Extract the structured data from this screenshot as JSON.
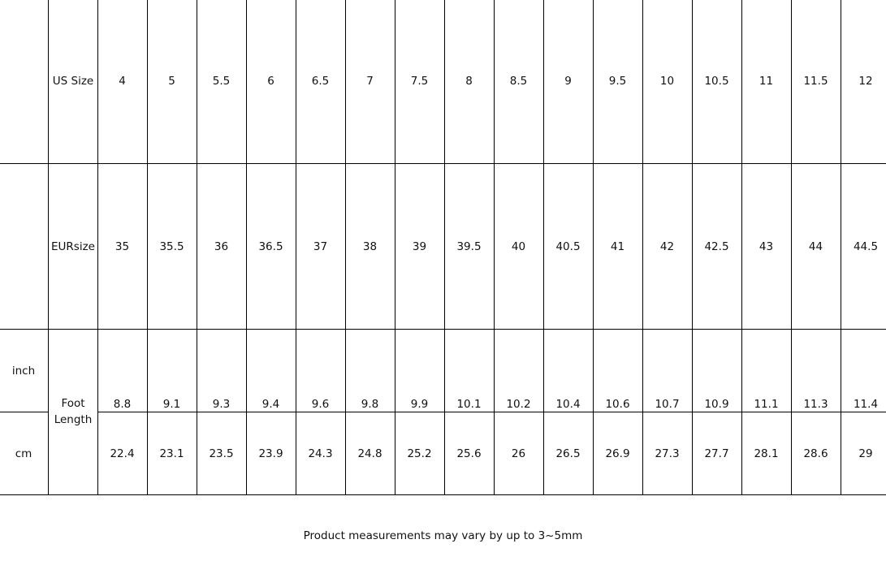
{
  "table": {
    "us_label": "US Size",
    "eur_label": "EURsize",
    "foot_length_label": "Foot Length",
    "inch_label": "inch",
    "cm_label": "cm",
    "us_sizes": [
      "4",
      "5",
      "5.5",
      "6",
      "6.5",
      "7",
      "7.5",
      "8",
      "8.5",
      "9",
      "9.5",
      "10",
      "10.5",
      "11",
      "11.5",
      "12"
    ],
    "eur_sizes": [
      "35",
      "35.5",
      "36",
      "36.5",
      "37",
      "38",
      "39",
      "39.5",
      "40",
      "40.5",
      "41",
      "42",
      "42.5",
      "43",
      "44",
      "44.5"
    ],
    "inch": [
      "8.8",
      "9.1",
      "9.3",
      "9.4",
      "9.6",
      "9.8",
      "9.9",
      "10.1",
      "10.2",
      "10.4",
      "10.6",
      "10.7",
      "10.9",
      "11.1",
      "11.3",
      "11.4"
    ],
    "cm": [
      "22.4",
      "23.1",
      "23.5",
      "23.9",
      "24.3",
      "24.8",
      "25.2",
      "25.6",
      "26",
      "26.5",
      "26.9",
      "27.3",
      "27.7",
      "28.1",
      "28.6",
      "29"
    ]
  },
  "note": "Product measurements may vary by up to 3~5mm"
}
